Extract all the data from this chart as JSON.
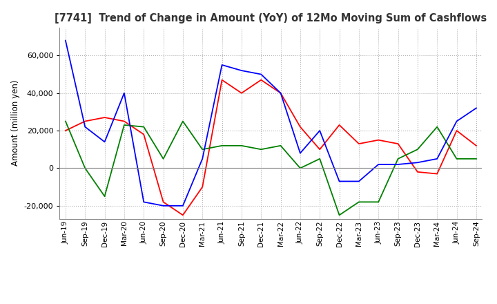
{
  "title": "[7741]  Trend of Change in Amount (YoY) of 12Mo Moving Sum of Cashflows",
  "ylabel": "Amount (million yen)",
  "ylim": [
    -27000,
    75000
  ],
  "yticks": [
    -20000,
    0,
    20000,
    40000,
    60000
  ],
  "dates": [
    "Jun-19",
    "Sep-19",
    "Dec-19",
    "Mar-20",
    "Jun-20",
    "Sep-20",
    "Dec-20",
    "Mar-21",
    "Jun-21",
    "Sep-21",
    "Dec-21",
    "Mar-22",
    "Jun-22",
    "Sep-22",
    "Dec-22",
    "Mar-23",
    "Jun-23",
    "Sep-23",
    "Dec-23",
    "Mar-24",
    "Jun-24",
    "Sep-24"
  ],
  "operating": [
    20000,
    25000,
    27000,
    25000,
    18000,
    -18000,
    -25000,
    -10000,
    47000,
    40000,
    47000,
    40000,
    22000,
    10000,
    23000,
    13000,
    15000,
    13000,
    -2000,
    -3000,
    20000,
    12000
  ],
  "investing": [
    25000,
    0,
    -15000,
    23000,
    22000,
    5000,
    25000,
    10000,
    12000,
    12000,
    10000,
    12000,
    0,
    5000,
    -25000,
    -18000,
    -18000,
    5000,
    10000,
    22000,
    5000,
    5000
  ],
  "free": [
    68000,
    22000,
    14000,
    40000,
    -18000,
    -20000,
    -20000,
    5000,
    55000,
    52000,
    50000,
    40000,
    8000,
    20000,
    -7000,
    -7000,
    2000,
    2000,
    3000,
    5000,
    25000,
    32000
  ],
  "op_color": "#ff0000",
  "inv_color": "#008000",
  "free_color": "#0000ff",
  "bg_color": "#ffffff",
  "grid_color": "#b0b0b0"
}
